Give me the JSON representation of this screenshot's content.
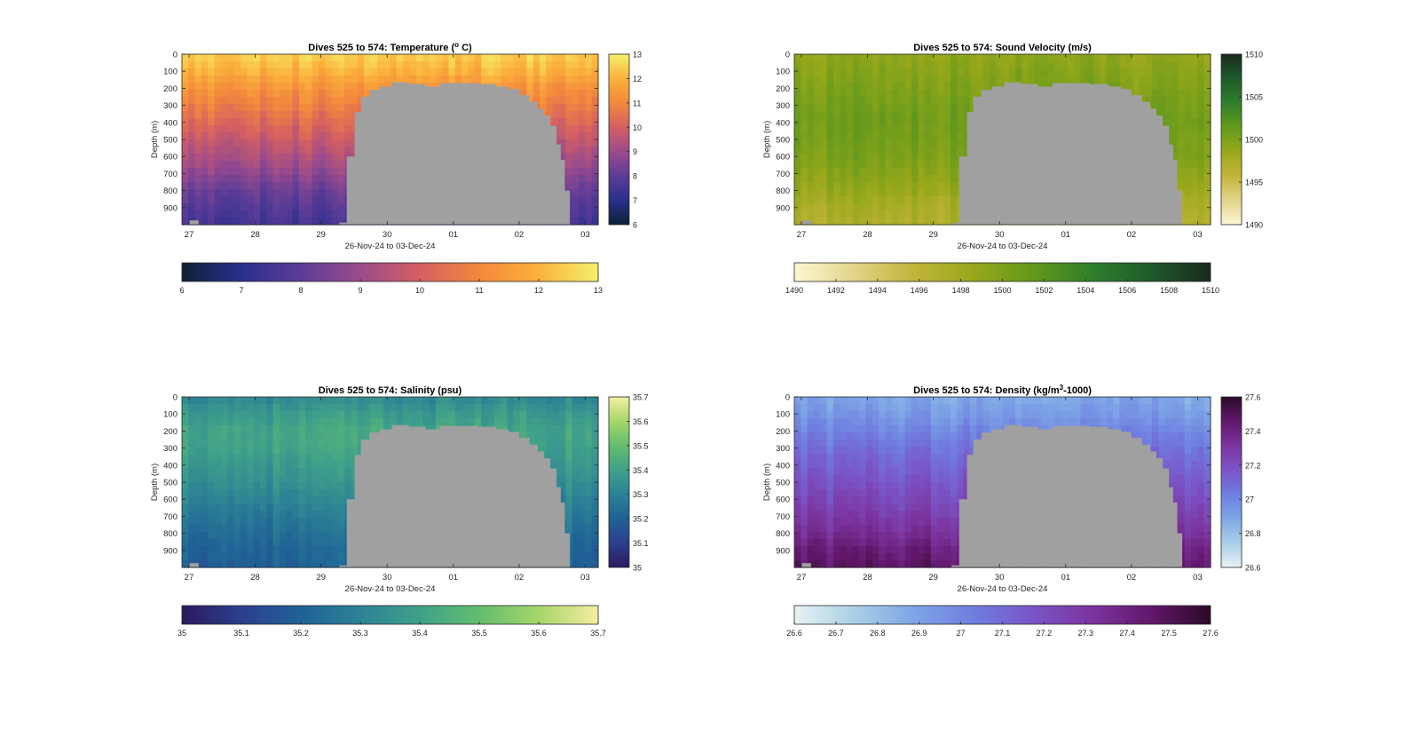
{
  "figure": {
    "background": "#ffffff"
  },
  "shared": {
    "xlabel": "26-Nov-24 to 03-Dec-24",
    "ylabel": "Depth (m)",
    "x_ticks": [
      "27",
      "28",
      "29",
      "30",
      "01",
      "02",
      "03"
    ],
    "y_ticks": [
      "0",
      "100",
      "200",
      "300",
      "400",
      "500",
      "600",
      "700",
      "800",
      "900"
    ],
    "mask_color": "#a0a0a0"
  },
  "chart_data": [
    {
      "type": "heatmap",
      "title": "Dives 525 to 574: Temperature (",
      "title_sup": "o",
      "title_end": " C)",
      "xlabel": "26-Nov-24 to 03-Dec-24",
      "ylabel": "Depth (m)",
      "x_range": [
        "26-Nov-24",
        "03-Dec-24"
      ],
      "ylim": [
        0,
        1000
      ],
      "y_reversed": true,
      "clim": [
        6,
        13
      ],
      "colormap": [
        "#0c2236",
        "#2a2f8c",
        "#5d3c97",
        "#9b4b8c",
        "#d35f62",
        "#f3883c",
        "#fbb13c",
        "#f4f06b"
      ],
      "colorbar_ticks": [
        "6",
        "7",
        "8",
        "9",
        "10",
        "11",
        "12",
        "13"
      ],
      "hbar_ticks": [
        "6",
        "7",
        "8",
        "9",
        "10",
        "11",
        "12",
        "13"
      ],
      "profile": [
        [
          0,
          12.5
        ],
        [
          100,
          12.0
        ],
        [
          200,
          11.3
        ],
        [
          300,
          10.8
        ],
        [
          400,
          10.3
        ],
        [
          500,
          9.8
        ],
        [
          600,
          9.3
        ],
        [
          700,
          8.8
        ],
        [
          800,
          8.2
        ],
        [
          900,
          7.8
        ],
        [
          1000,
          7.5
        ]
      ]
    },
    {
      "type": "heatmap",
      "title": "Dives 525 to 574: Sound Velocity (m/s)",
      "title_sup": "",
      "title_end": "",
      "xlabel": "26-Nov-24 to 03-Dec-24",
      "ylabel": "Depth (m)",
      "x_range": [
        "26-Nov-24",
        "03-Dec-24"
      ],
      "ylim": [
        0,
        1000
      ],
      "y_reversed": true,
      "clim": [
        1490,
        1510
      ],
      "colormap": [
        "#fdf7d2",
        "#e2d48a",
        "#c2b43a",
        "#98a81a",
        "#63991c",
        "#2f7f2b",
        "#1f5a2b",
        "#17291c"
      ],
      "colorbar_ticks": [
        "1490",
        "1495",
        "1500",
        "1505",
        "1510"
      ],
      "hbar_ticks": [
        "1490",
        "1492",
        "1494",
        "1496",
        "1498",
        "1500",
        "1502",
        "1504",
        "1506",
        "1508",
        "1510"
      ],
      "profile": [
        [
          0,
          1499
        ],
        [
          100,
          1499.5
        ],
        [
          200,
          1500
        ],
        [
          300,
          1500.5
        ],
        [
          400,
          1500.8
        ],
        [
          500,
          1500.5
        ],
        [
          600,
          1500.2
        ],
        [
          700,
          1499.5
        ],
        [
          800,
          1498.5
        ],
        [
          900,
          1497.5
        ],
        [
          1000,
          1497
        ]
      ]
    },
    {
      "type": "heatmap",
      "title": "Dives 525 to 574: Salinity (psu)",
      "title_sup": "",
      "title_end": "",
      "xlabel": "26-Nov-24 to 03-Dec-24",
      "ylabel": "Depth (m)",
      "x_range": [
        "26-Nov-24",
        "03-Dec-24"
      ],
      "ylim": [
        0,
        1000
      ],
      "y_reversed": true,
      "clim": [
        35,
        35.7
      ],
      "colormap": [
        "#2a1a5e",
        "#2c3f8f",
        "#1f6296",
        "#2d8295",
        "#3fa08a",
        "#63bd6e",
        "#a5d66b",
        "#f6eda2"
      ],
      "colorbar_ticks": [
        "35.7",
        "35.6",
        "35.5",
        "35.4",
        "35.3",
        "35.2",
        "35.1",
        "35"
      ],
      "hbar_ticks": [
        "35",
        "35.1",
        "35.2",
        "35.3",
        "35.4",
        "35.5",
        "35.6",
        "35.7"
      ],
      "profile": [
        [
          0,
          35.32
        ],
        [
          100,
          35.38
        ],
        [
          200,
          35.42
        ],
        [
          300,
          35.41
        ],
        [
          400,
          35.38
        ],
        [
          500,
          35.35
        ],
        [
          600,
          35.31
        ],
        [
          700,
          35.27
        ],
        [
          800,
          35.24
        ],
        [
          900,
          35.21
        ],
        [
          1000,
          35.2
        ]
      ]
    },
    {
      "type": "heatmap",
      "title": "Dives 525 to 574: Density (kg/m",
      "title_sup": "3",
      "title_end": "-1000)",
      "xlabel": "26-Nov-24 to 03-Dec-24",
      "ylabel": "Depth (m)",
      "x_range": [
        "26-Nov-24",
        "03-Dec-24"
      ],
      "ylim": [
        0,
        1000
      ],
      "y_reversed": true,
      "clim": [
        26.6,
        27.6
      ],
      "colormap": [
        "#e8f2f3",
        "#a9d0e6",
        "#7ea6e6",
        "#6f7ee0",
        "#7a55c7",
        "#7c349f",
        "#62176b",
        "#2a0a26"
      ],
      "colorbar_ticks": [
        "27.6",
        "27.4",
        "27.2",
        "27",
        "26.8",
        "26.6"
      ],
      "hbar_ticks": [
        "26.6",
        "26.7",
        "26.8",
        "26.9",
        "27",
        "27.1",
        "27.2",
        "27.3",
        "27.4",
        "27.5",
        "27.6"
      ],
      "profile": [
        [
          0,
          26.88
        ],
        [
          100,
          26.93
        ],
        [
          200,
          27.0
        ],
        [
          300,
          27.07
        ],
        [
          400,
          27.12
        ],
        [
          500,
          27.17
        ],
        [
          600,
          27.22
        ],
        [
          700,
          27.28
        ],
        [
          800,
          27.34
        ],
        [
          900,
          27.42
        ],
        [
          1000,
          27.47
        ]
      ]
    }
  ]
}
